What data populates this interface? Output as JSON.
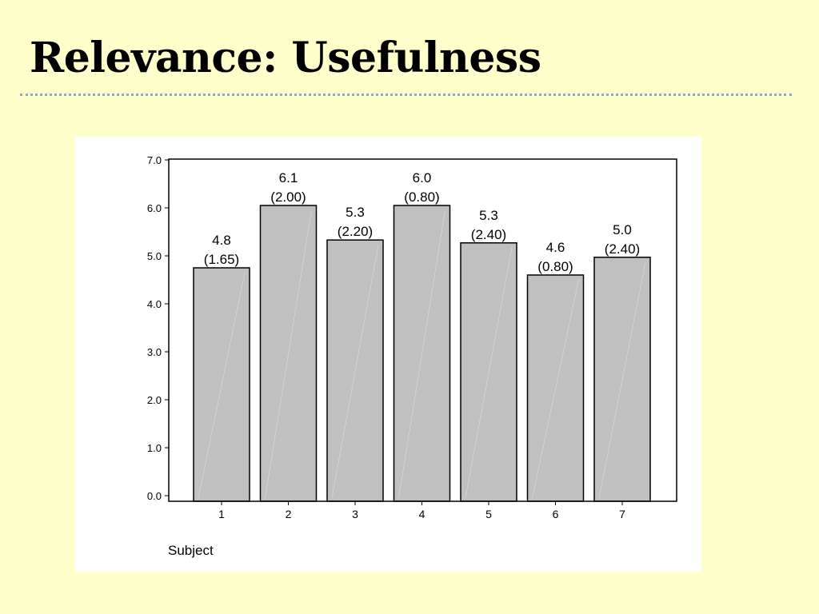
{
  "slide": {
    "title": "Relevance: Usefulness"
  },
  "colors": {
    "background": "#FFFFCC",
    "rule": "#8FA5DE",
    "bar_fill": "#C0C0C0",
    "bar_stroke": "#000000"
  },
  "chart_data": {
    "type": "bar",
    "categories": [
      "1",
      "2",
      "3",
      "4",
      "5",
      "6",
      "7"
    ],
    "values": [
      4.75,
      6.05,
      5.33,
      6.05,
      5.27,
      4.6,
      4.97
    ],
    "value_labels": [
      "4.8",
      "6.1",
      "5.3",
      "6.0",
      "5.3",
      "4.6",
      "5.0"
    ],
    "sd_labels": [
      "(1.65)",
      "(2.00)",
      "(2.20)",
      "(0.80)",
      "(2.40)",
      "(0.80)",
      "(2.40)"
    ],
    "y_ticks": [
      "0.0",
      "1.0",
      "2.0",
      "3.0",
      "4.0",
      "5.0",
      "6.0",
      "7.0"
    ],
    "ylim": [
      0,
      7
    ],
    "xlabel": "Subject",
    "ylabel": "",
    "title": "",
    "grid": false,
    "legend": "none"
  }
}
